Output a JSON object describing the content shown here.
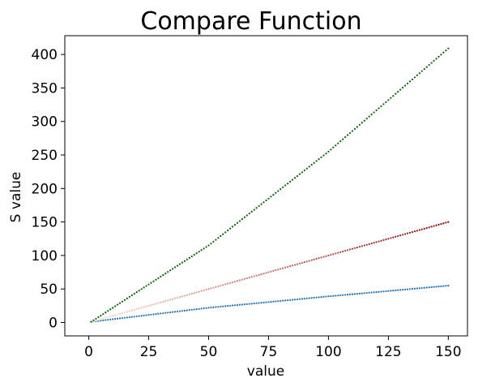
{
  "chart_data": {
    "type": "scatter",
    "title": "Compare Function",
    "xlabel": "value",
    "ylabel": "S value",
    "xlim": [
      -10,
      158
    ],
    "ylim": [
      -20,
      428
    ],
    "x_ticks": [
      0,
      25,
      50,
      75,
      100,
      125,
      150
    ],
    "y_ticks": [
      0,
      50,
      100,
      150,
      200,
      250,
      300,
      350,
      400
    ],
    "grid": false,
    "legend": "none",
    "x": {
      "start": 1,
      "end": 150,
      "step": 1
    },
    "series": [
      {
        "color_start": "#1f77b4",
        "color_end": "#1f6fb4",
        "key_values": [
          {
            "x": 1,
            "y": 1
          },
          {
            "x": 50,
            "y": 22
          },
          {
            "x": 100,
            "y": 39
          },
          {
            "x": 150,
            "y": 55
          }
        ]
      },
      {
        "color_start": "#fde0cf",
        "color_end": "#8b0000",
        "key_values": [
          {
            "x": 1,
            "y": 1
          },
          {
            "x": 50,
            "y": 50
          },
          {
            "x": 100,
            "y": 100
          },
          {
            "x": 150,
            "y": 150
          }
        ]
      },
      {
        "color_start": "#006400",
        "color_end": "#006400",
        "key_values": [
          {
            "x": 1,
            "y": 1
          },
          {
            "x": 50,
            "y": 115
          },
          {
            "x": 100,
            "y": 255
          },
          {
            "x": 150,
            "y": 409
          }
        ]
      }
    ]
  }
}
